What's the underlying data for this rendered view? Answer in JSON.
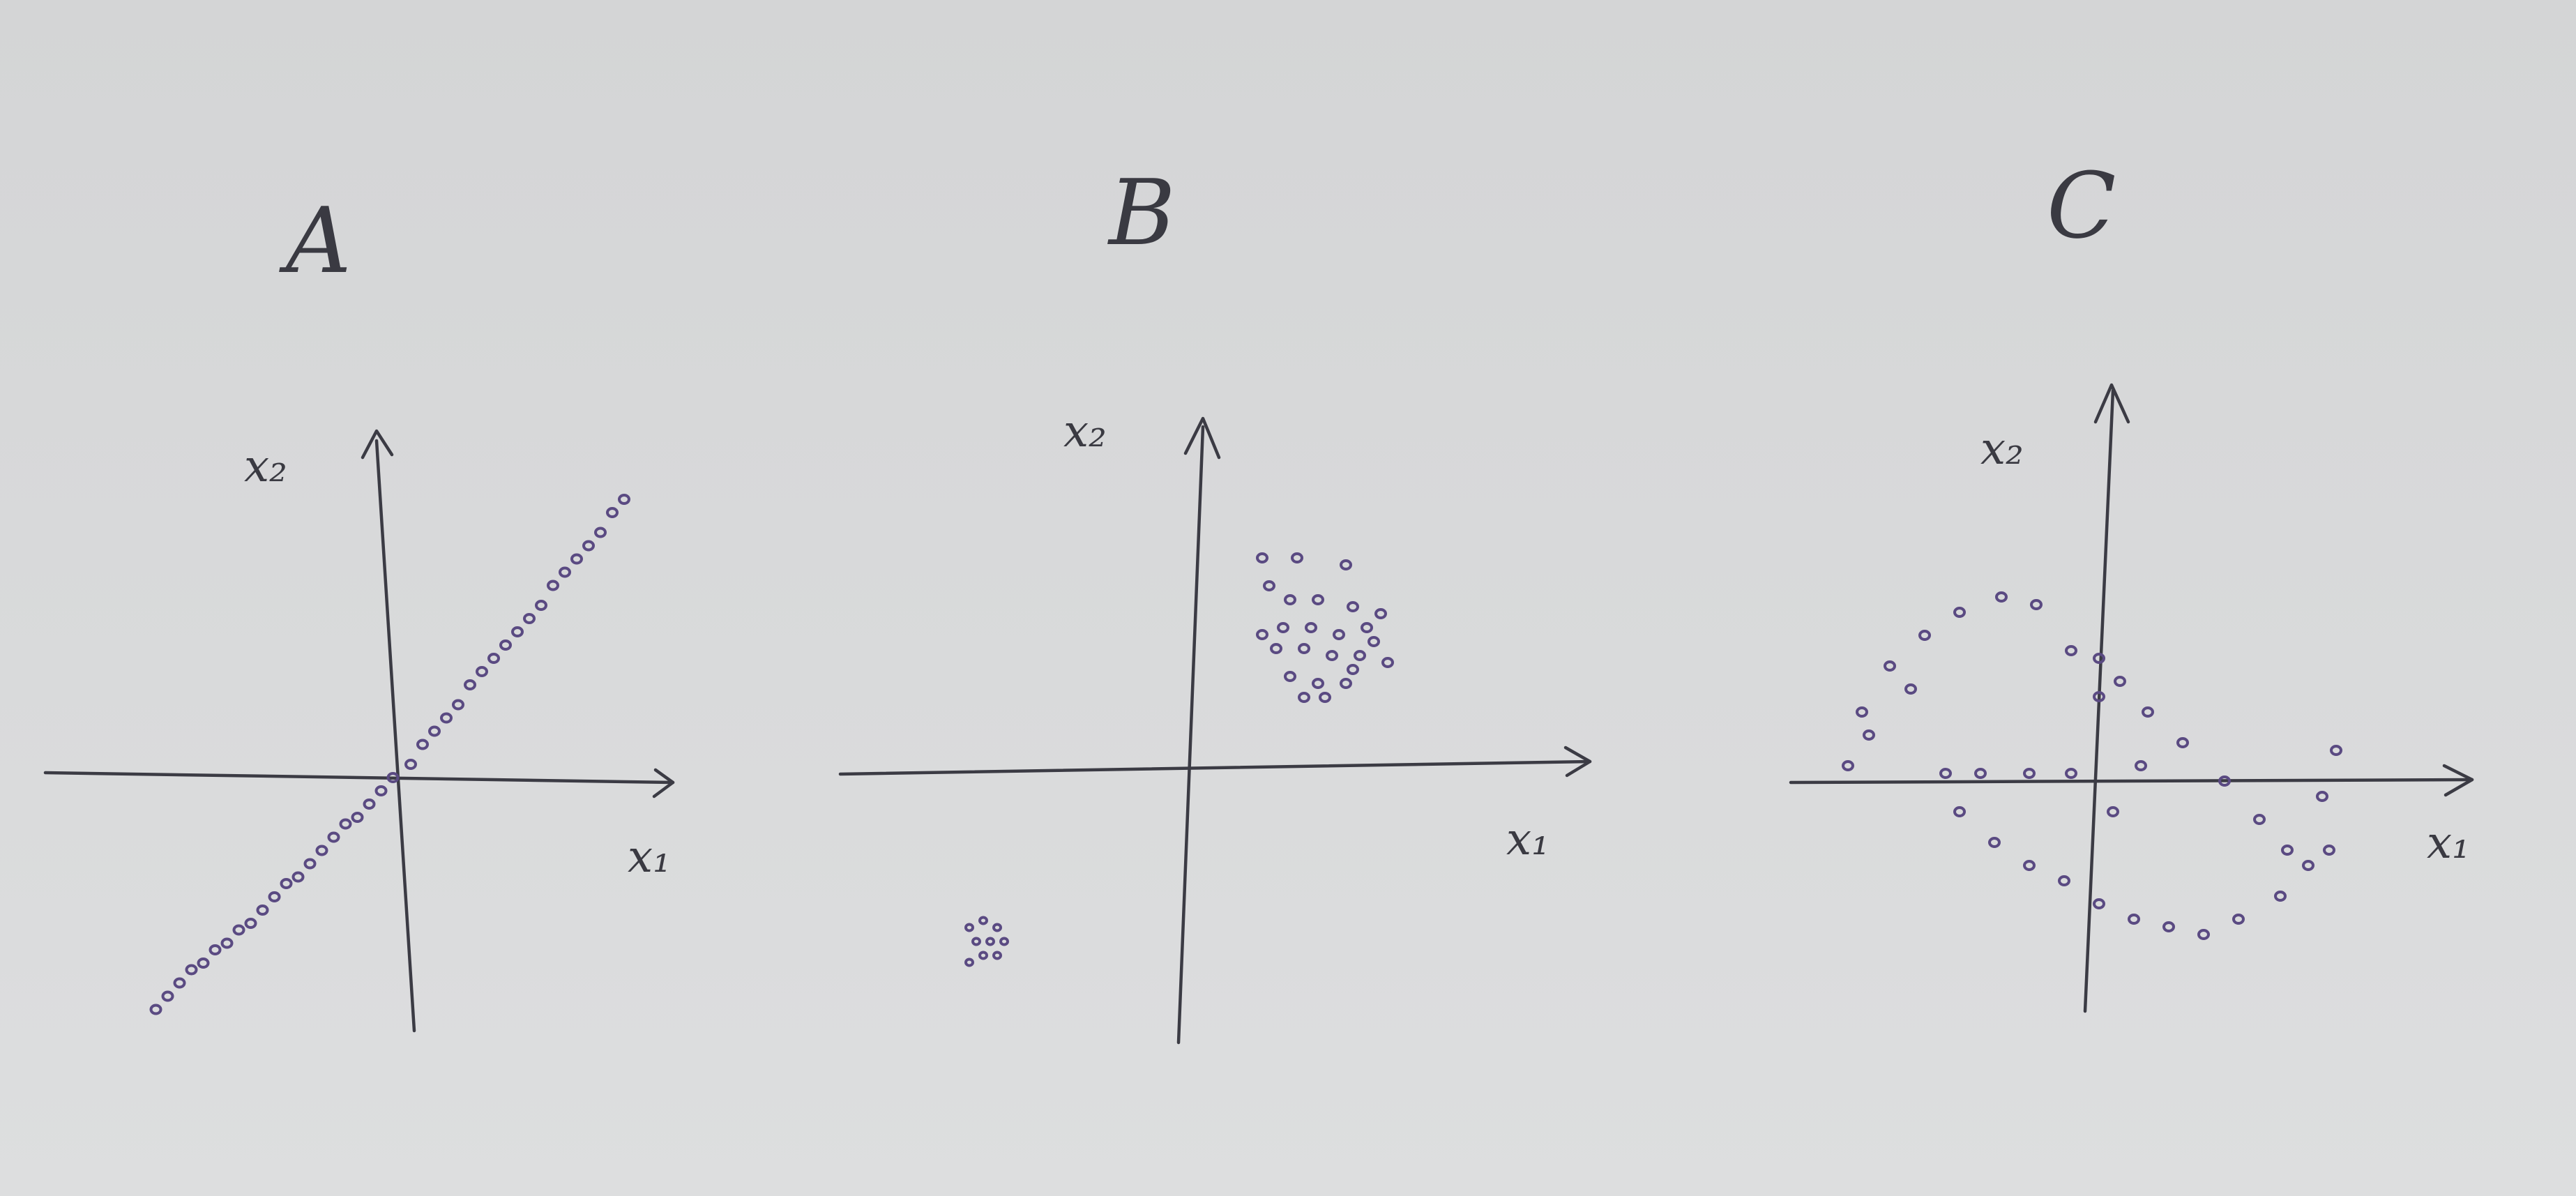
{
  "chart_data": [
    {
      "type": "scatter",
      "title": "A",
      "xlabel": "x₁",
      "ylabel": "x₂",
      "xlim": [
        -4.5,
        4.5
      ],
      "ylim": [
        -4.5,
        4.5
      ],
      "grid": false,
      "series": [
        {
          "x": [
            -4.1,
            -3.9,
            -3.7,
            -3.5,
            -3.3,
            -3.1,
            -2.9,
            -2.7,
            -2.5,
            -2.3,
            -2.1,
            -1.9,
            -1.7,
            -1.5,
            -1.3,
            -1.1,
            -0.9,
            -0.7,
            -0.5,
            -0.3,
            -0.1,
            0.2,
            0.4,
            0.6,
            0.8,
            1.0,
            1.2,
            1.4,
            1.6,
            1.8,
            2.0,
            2.2,
            2.4,
            2.6,
            2.8,
            3.0,
            3.2,
            3.4,
            3.6,
            3.8
          ],
          "y": [
            -3.5,
            -3.3,
            -3.1,
            -2.9,
            -2.8,
            -2.6,
            -2.5,
            -2.3,
            -2.2,
            -2.0,
            -1.8,
            -1.6,
            -1.5,
            -1.3,
            -1.1,
            -0.9,
            -0.7,
            -0.6,
            -0.4,
            -0.2,
            0.0,
            0.2,
            0.5,
            0.7,
            0.9,
            1.1,
            1.4,
            1.6,
            1.8,
            2.0,
            2.2,
            2.4,
            2.6,
            2.9,
            3.1,
            3.3,
            3.5,
            3.7,
            4.0,
            4.2
          ]
        }
      ]
    },
    {
      "type": "scatter",
      "title": "B",
      "xlabel": "x₁",
      "ylabel": "x₂",
      "xlim": [
        -4.5,
        4.5
      ],
      "ylim": [
        -4.5,
        4.5
      ],
      "grid": false,
      "series": [
        {
          "x": [
            1.0,
            1.5,
            2.2,
            1.1,
            1.4,
            1.8,
            2.3,
            2.7,
            1.3,
            1.7,
            2.1,
            2.5,
            1.2,
            1.6,
            2.0,
            2.4,
            2.8,
            1.4,
            1.8,
            2.2,
            1.9,
            1.6,
            2.3,
            2.6,
            1.0
          ],
          "y": [
            3.0,
            3.0,
            2.9,
            2.6,
            2.4,
            2.4,
            2.3,
            2.2,
            2.0,
            2.0,
            1.9,
            2.0,
            1.7,
            1.7,
            1.6,
            1.6,
            1.5,
            1.3,
            1.2,
            1.2,
            1.0,
            1.0,
            1.4,
            1.8,
            1.9
          ]
        },
        {
          "x": [
            -3.2,
            -3.0,
            -2.8,
            -3.1,
            -2.9,
            -2.7,
            -3.0,
            -2.8,
            -3.2
          ],
          "y": [
            -2.3,
            -2.2,
            -2.3,
            -2.5,
            -2.5,
            -2.5,
            -2.7,
            -2.7,
            -2.8
          ]
        }
      ]
    },
    {
      "type": "scatter",
      "title": "C",
      "xlabel": "x₁",
      "ylabel": "x₂",
      "xlim": [
        -4.5,
        4.5
      ],
      "ylim": [
        -4.5,
        4.5
      ],
      "grid": false,
      "series": [
        {
          "x": [
            -3.6,
            -3.4,
            -3.0,
            -2.5,
            -2.0,
            -1.4,
            -0.9,
            -0.4,
            0.0,
            0.0,
            -2.2,
            -1.7,
            -1.0,
            -0.4,
            -3.3,
            -2.7
          ],
          "y": [
            0.2,
            0.9,
            1.5,
            1.9,
            2.2,
            2.4,
            2.3,
            1.7,
            1.1,
            1.6,
            0.1,
            0.1,
            0.1,
            0.1,
            0.6,
            1.2
          ]
        },
        {
          "x": [
            0.3,
            0.7,
            1.2,
            1.8,
            2.3,
            2.7,
            3.0,
            3.3,
            0.0,
            -0.5,
            -1.0,
            -1.5,
            -2.0,
            0.5,
            1.0,
            1.5,
            2.0,
            2.6,
            3.2,
            3.4,
            0.2,
            0.6
          ],
          "y": [
            1.3,
            0.9,
            0.5,
            0.0,
            -0.5,
            -0.9,
            -1.1,
            -0.9,
            -1.6,
            -1.3,
            -1.1,
            -0.8,
            -0.4,
            -1.8,
            -1.9,
            -2.0,
            -1.8,
            -1.5,
            -0.2,
            0.4,
            -0.4,
            0.2
          ]
        }
      ]
    }
  ]
}
